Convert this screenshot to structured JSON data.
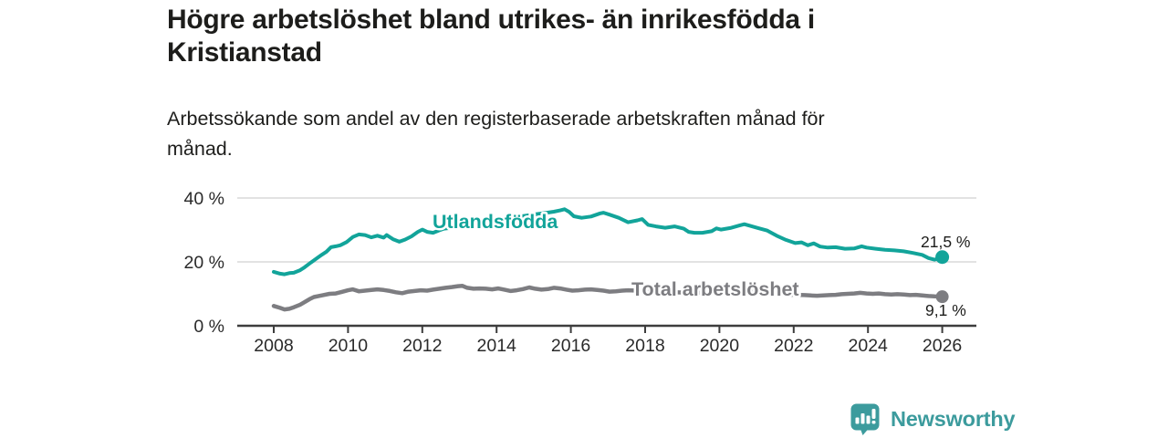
{
  "header": {
    "title": "Högre arbetslöshet bland utrikes- än inrikesfödda i\nKristianstad",
    "subtitle": "Arbetssökande som andel av den registerbaserade arbetskraften månad för\nmånad."
  },
  "footer": {
    "logo_text": "Newsworthy",
    "logo_icon": "bar-chart-speech-bubble-icon",
    "logo_color": "#3c9b9d"
  },
  "colors": {
    "background": "#ffffff",
    "title_text": "#1d1d1b",
    "axis_text": "#2a2a2a",
    "axis_line": "#3d3d3d",
    "gridline": "#d9d9d9",
    "series_foreign_born": "#12a49a",
    "series_total": "#7d7d81"
  },
  "chart_data": {
    "type": "line",
    "title": "Högre arbetslöshet bland utrikes- än inrikesfödda i Kristianstad",
    "subtitle": "Arbetssökande som andel av den registerbaserade arbetskraften månad för månad.",
    "grid": "horizontal",
    "legend": "inline-labels",
    "x_axis": {
      "min": 2008,
      "max": 2026,
      "ticks": [
        2008,
        2010,
        2012,
        2014,
        2016,
        2018,
        2020,
        2022,
        2024,
        2026
      ]
    },
    "y_axis": {
      "min": 0,
      "max": 40,
      "unit": "%",
      "ticks": [
        0,
        20,
        40
      ],
      "tick_labels": [
        "0 %",
        "20 %",
        "40 %"
      ]
    },
    "series": [
      {
        "name": "Utlandsfödda",
        "color": "#12a49a",
        "end_value": 21.5,
        "end_label": "21,5 %",
        "points": [
          [
            2008.0,
            16.9
          ],
          [
            2008.17,
            16.3
          ],
          [
            2008.29,
            16.1
          ],
          [
            2008.42,
            16.5
          ],
          [
            2008.54,
            16.6
          ],
          [
            2008.71,
            17.4
          ],
          [
            2008.83,
            18.3
          ],
          [
            2009.0,
            19.8
          ],
          [
            2009.17,
            21.2
          ],
          [
            2009.29,
            22.2
          ],
          [
            2009.42,
            23.2
          ],
          [
            2009.54,
            24.6
          ],
          [
            2009.67,
            24.9
          ],
          [
            2009.79,
            25.2
          ],
          [
            2009.96,
            26.2
          ],
          [
            2010.13,
            27.8
          ],
          [
            2010.29,
            28.6
          ],
          [
            2010.46,
            28.4
          ],
          [
            2010.63,
            27.7
          ],
          [
            2010.79,
            28.2
          ],
          [
            2010.96,
            27.6
          ],
          [
            2011.04,
            28.4
          ],
          [
            2011.21,
            27.1
          ],
          [
            2011.38,
            26.3
          ],
          [
            2011.54,
            27.0
          ],
          [
            2011.71,
            28.0
          ],
          [
            2011.88,
            29.4
          ],
          [
            2012.0,
            30.1
          ],
          [
            2012.13,
            29.4
          ],
          [
            2012.29,
            29.1
          ],
          [
            2012.46,
            29.9
          ],
          [
            2012.58,
            30.4
          ],
          [
            2012.79,
            30.7
          ],
          [
            2013.04,
            31.2
          ],
          [
            2013.29,
            31.7
          ],
          [
            2013.54,
            32.2
          ],
          [
            2013.79,
            32.7
          ],
          [
            2014.04,
            33.2
          ],
          [
            2014.29,
            33.7
          ],
          [
            2014.54,
            34.1
          ],
          [
            2014.79,
            34.5
          ],
          [
            2015.04,
            34.9
          ],
          [
            2015.29,
            35.3
          ],
          [
            2015.54,
            35.7
          ],
          [
            2015.71,
            36.1
          ],
          [
            2015.83,
            36.5
          ],
          [
            2015.96,
            35.6
          ],
          [
            2016.08,
            34.3
          ],
          [
            2016.29,
            33.8
          ],
          [
            2016.54,
            34.2
          ],
          [
            2016.79,
            35.2
          ],
          [
            2016.88,
            35.4
          ],
          [
            2017.04,
            34.8
          ],
          [
            2017.29,
            33.8
          ],
          [
            2017.54,
            32.4
          ],
          [
            2017.79,
            33.0
          ],
          [
            2017.92,
            33.4
          ],
          [
            2018.08,
            31.6
          ],
          [
            2018.29,
            31.1
          ],
          [
            2018.54,
            30.7
          ],
          [
            2018.79,
            31.1
          ],
          [
            2019.04,
            30.4
          ],
          [
            2019.17,
            29.4
          ],
          [
            2019.33,
            29.1
          ],
          [
            2019.54,
            29.1
          ],
          [
            2019.79,
            29.6
          ],
          [
            2019.92,
            30.5
          ],
          [
            2020.04,
            30.1
          ],
          [
            2020.29,
            30.6
          ],
          [
            2020.54,
            31.4
          ],
          [
            2020.67,
            31.8
          ],
          [
            2020.79,
            31.4
          ],
          [
            2021.04,
            30.6
          ],
          [
            2021.29,
            29.8
          ],
          [
            2021.54,
            28.2
          ],
          [
            2021.79,
            26.9
          ],
          [
            2022.04,
            25.9
          ],
          [
            2022.21,
            26.1
          ],
          [
            2022.38,
            25.2
          ],
          [
            2022.54,
            25.8
          ],
          [
            2022.71,
            24.8
          ],
          [
            2022.92,
            24.5
          ],
          [
            2023.13,
            24.6
          ],
          [
            2023.38,
            24.1
          ],
          [
            2023.63,
            24.2
          ],
          [
            2023.83,
            24.9
          ],
          [
            2023.96,
            24.5
          ],
          [
            2024.21,
            24.1
          ],
          [
            2024.46,
            23.8
          ],
          [
            2024.71,
            23.6
          ],
          [
            2024.96,
            23.3
          ],
          [
            2025.21,
            22.8
          ],
          [
            2025.46,
            22.2
          ],
          [
            2025.63,
            21.2
          ],
          [
            2025.79,
            20.7
          ],
          [
            2026.0,
            21.5
          ]
        ]
      },
      {
        "name": "Total arbetslöshet",
        "color": "#7d7d81",
        "end_value": 9.1,
        "end_label": "9,1 %",
        "points": [
          [
            2008.0,
            6.2
          ],
          [
            2008.17,
            5.6
          ],
          [
            2008.29,
            5.1
          ],
          [
            2008.42,
            5.3
          ],
          [
            2008.54,
            5.8
          ],
          [
            2008.71,
            6.6
          ],
          [
            2008.83,
            7.4
          ],
          [
            2008.96,
            8.3
          ],
          [
            2009.08,
            9.0
          ],
          [
            2009.21,
            9.3
          ],
          [
            2009.33,
            9.6
          ],
          [
            2009.5,
            10.0
          ],
          [
            2009.67,
            10.1
          ],
          [
            2009.83,
            10.6
          ],
          [
            2010.0,
            11.1
          ],
          [
            2010.13,
            11.4
          ],
          [
            2010.29,
            10.8
          ],
          [
            2010.46,
            11.0
          ],
          [
            2010.63,
            11.2
          ],
          [
            2010.79,
            11.4
          ],
          [
            2010.96,
            11.2
          ],
          [
            2011.13,
            10.9
          ],
          [
            2011.29,
            10.5
          ],
          [
            2011.46,
            10.2
          ],
          [
            2011.63,
            10.7
          ],
          [
            2011.79,
            10.9
          ],
          [
            2011.96,
            11.1
          ],
          [
            2012.13,
            11.0
          ],
          [
            2012.29,
            11.3
          ],
          [
            2012.46,
            11.6
          ],
          [
            2012.63,
            11.9
          ],
          [
            2012.79,
            12.1
          ],
          [
            2012.96,
            12.4
          ],
          [
            2013.08,
            12.5
          ],
          [
            2013.21,
            11.9
          ],
          [
            2013.38,
            11.6
          ],
          [
            2013.54,
            11.7
          ],
          [
            2013.71,
            11.6
          ],
          [
            2013.88,
            11.4
          ],
          [
            2014.04,
            11.7
          ],
          [
            2014.21,
            11.3
          ],
          [
            2014.38,
            10.9
          ],
          [
            2014.54,
            11.1
          ],
          [
            2014.71,
            11.5
          ],
          [
            2014.88,
            12.0
          ],
          [
            2015.04,
            11.6
          ],
          [
            2015.21,
            11.3
          ],
          [
            2015.38,
            11.5
          ],
          [
            2015.54,
            11.9
          ],
          [
            2015.71,
            11.7
          ],
          [
            2015.88,
            11.3
          ],
          [
            2016.04,
            11.0
          ],
          [
            2016.21,
            11.1
          ],
          [
            2016.38,
            11.3
          ],
          [
            2016.54,
            11.4
          ],
          [
            2016.71,
            11.2
          ],
          [
            2016.88,
            11.0
          ],
          [
            2017.04,
            10.7
          ],
          [
            2017.21,
            10.8
          ],
          [
            2017.38,
            11.0
          ],
          [
            2017.54,
            11.1
          ],
          [
            2017.79,
            11.0
          ],
          [
            2018.04,
            10.9
          ],
          [
            2018.29,
            10.7
          ],
          [
            2018.54,
            10.6
          ],
          [
            2018.79,
            10.5
          ],
          [
            2019.04,
            10.4
          ],
          [
            2019.29,
            10.3
          ],
          [
            2019.54,
            10.3
          ],
          [
            2019.79,
            10.4
          ],
          [
            2020.04,
            10.6
          ],
          [
            2020.29,
            10.9
          ],
          [
            2020.54,
            11.0
          ],
          [
            2020.79,
            10.8
          ],
          [
            2021.04,
            10.5
          ],
          [
            2021.29,
            10.2
          ],
          [
            2021.54,
            10.0
          ],
          [
            2021.79,
            9.8
          ],
          [
            2022.04,
            9.7
          ],
          [
            2022.29,
            9.6
          ],
          [
            2022.46,
            9.5
          ],
          [
            2022.63,
            9.4
          ],
          [
            2022.79,
            9.5
          ],
          [
            2022.96,
            9.6
          ],
          [
            2023.13,
            9.7
          ],
          [
            2023.29,
            9.9
          ],
          [
            2023.46,
            10.0
          ],
          [
            2023.63,
            10.1
          ],
          [
            2023.79,
            10.3
          ],
          [
            2023.96,
            10.1
          ],
          [
            2024.13,
            10.0
          ],
          [
            2024.29,
            10.1
          ],
          [
            2024.46,
            9.9
          ],
          [
            2024.63,
            9.8
          ],
          [
            2024.79,
            9.9
          ],
          [
            2024.96,
            9.8
          ],
          [
            2025.13,
            9.6
          ],
          [
            2025.29,
            9.7
          ],
          [
            2025.46,
            9.5
          ],
          [
            2025.63,
            9.3
          ],
          [
            2025.79,
            9.2
          ],
          [
            2026.0,
            9.1
          ]
        ]
      }
    ]
  }
}
